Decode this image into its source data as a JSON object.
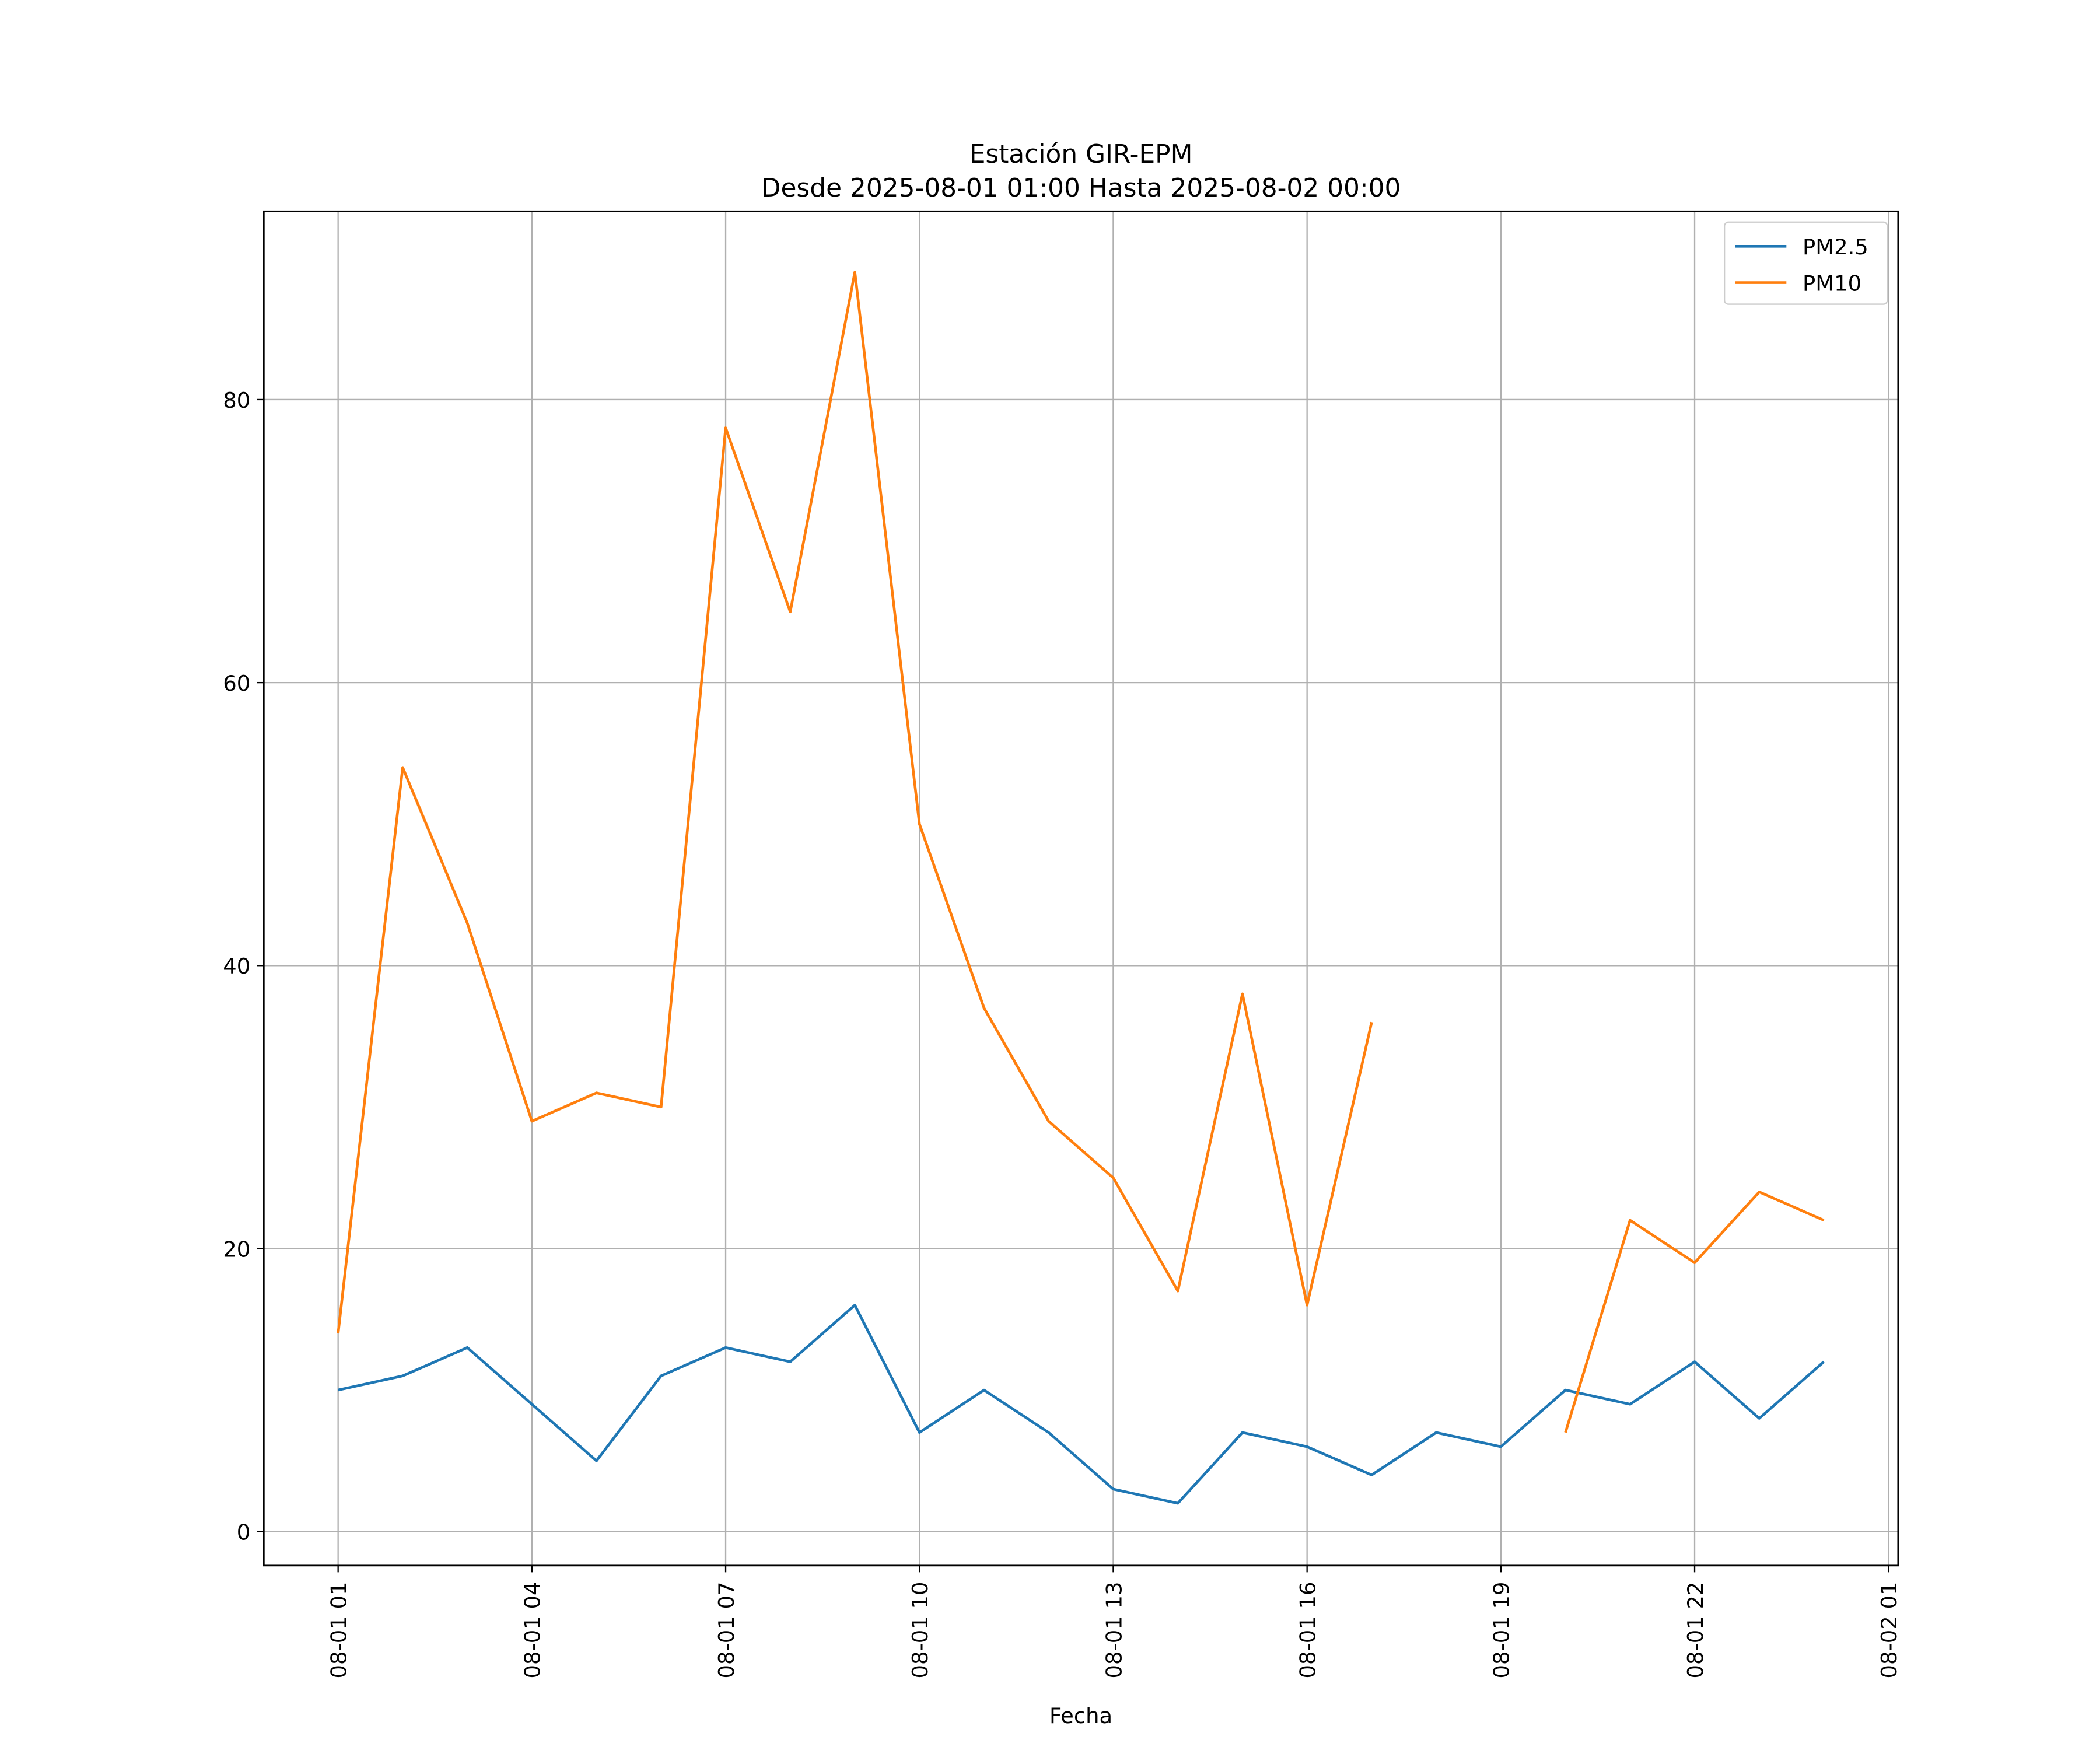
{
  "chart_data": {
    "type": "line",
    "title": [
      "Estación GIR-EPM",
      "Desde 2025-08-01 01:00 Hasta 2025-08-02 00:00"
    ],
    "x_label": "Fecha",
    "x": [
      "08-01 01",
      "08-01 02",
      "08-01 03",
      "08-01 04",
      "08-01 05",
      "08-01 06",
      "08-01 07",
      "08-01 08",
      "08-01 09",
      "08-01 10",
      "08-01 11",
      "08-01 12",
      "08-01 13",
      "08-01 14",
      "08-01 15",
      "08-01 16",
      "08-01 17",
      "08-01 18",
      "08-01 19",
      "08-01 20",
      "08-01 21",
      "08-01 22",
      "08-01 23",
      "08-02 00"
    ],
    "series": [
      {
        "name": "PM2.5",
        "color": "#1f77b4",
        "values": [
          10,
          11,
          13,
          9,
          5,
          11,
          13,
          12,
          16,
          7,
          10,
          7,
          3,
          2,
          7,
          6,
          4,
          7,
          6,
          10,
          9,
          12,
          8,
          12
        ]
      },
      {
        "name": "PM10",
        "color": "#ff7f0e",
        "values": [
          14,
          54,
          43,
          29,
          31,
          30,
          78,
          65,
          89,
          50,
          37,
          29,
          25,
          17,
          38,
          16,
          36,
          null,
          null,
          7,
          22,
          19,
          24,
          22
        ]
      }
    ],
    "xlim": [
      "07-31 23:51",
      "08-02 01:09"
    ],
    "xticks": [
      "08-01 01",
      "08-01 04",
      "08-01 07",
      "08-01 10",
      "08-01 13",
      "08-01 16",
      "08-01 19",
      "08-01 22",
      "08-02 01"
    ],
    "ylim": [
      -2.4,
      93.3
    ],
    "yticks": [
      0,
      20,
      40,
      60,
      80
    ],
    "grid": true,
    "legend": "upper right"
  }
}
